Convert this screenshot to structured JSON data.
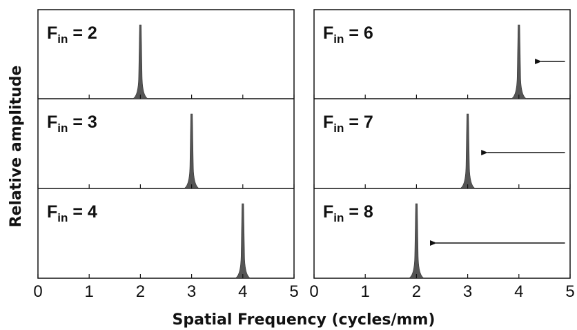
{
  "chart_data": {
    "type": "line",
    "xlabel": "Spatial Frequency (cycles/mm)",
    "ylabel": "Relative amplitude",
    "xlim": [
      0,
      5
    ],
    "x_ticks": [
      "0",
      "1",
      "2",
      "3",
      "4",
      "5"
    ],
    "layout": "3 rows x 2 columns, shared axes",
    "panels": [
      {
        "label_main": "F",
        "label_sub": "in",
        "label_value": " = 2",
        "peak_x": 2,
        "arrow": false
      },
      {
        "label_main": "F",
        "label_sub": "in",
        "label_value": " = 6",
        "peak_x": 4,
        "arrow": true,
        "arrow_from_x": 4.9,
        "arrow_to_x": 4.3
      },
      {
        "label_main": "F",
        "label_sub": "in",
        "label_value": " = 3",
        "peak_x": 3,
        "arrow": false
      },
      {
        "label_main": "F",
        "label_sub": "in",
        "label_value": " = 7",
        "peak_x": 3,
        "arrow": true,
        "arrow_from_x": 4.9,
        "arrow_to_x": 3.25
      },
      {
        "label_main": "F",
        "label_sub": "in",
        "label_value": " = 4",
        "peak_x": 4,
        "arrow": false
      },
      {
        "label_main": "F",
        "label_sub": "in",
        "label_value": " = 8",
        "peak_x": 2,
        "arrow": true,
        "arrow_from_x": 4.9,
        "arrow_to_x": 2.25
      }
    ]
  },
  "colors": {
    "peak_fill": "#555555",
    "frame": "#111111",
    "arrow": "#111111"
  }
}
